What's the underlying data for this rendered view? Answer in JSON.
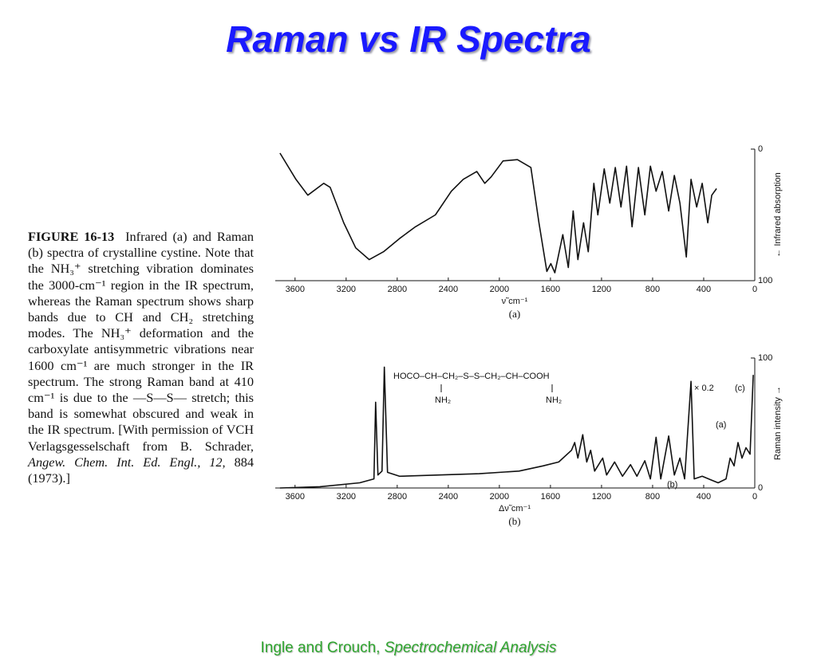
{
  "header": {
    "title": "Raman vs IR Spectra"
  },
  "caption": {
    "label": "FIGURE 16-13",
    "text": "Infrared (a) and Raman (b) spectra of crystalline cystine. Note that the NH₃⁺ stretching vibration dominates the 3000-cm⁻¹ region in the IR spectrum, whereas the Raman spectrum shows sharp bands due to CH and CH₂ stretching modes. The NH₃⁺ deformation and the carboxylate antisymmetric vibrations near 1600 cm⁻¹ are much stronger in the IR spectrum. The strong Raman band at 410 cm⁻¹ is due to the —S—S— stretch; this band is somewhat obscured and weak in the IR spectrum. [With permission of VCH Verlagsgesselschaft from B. Schrader, ",
    "journal": "Angew. Chem. Int. Ed. Engl., 12,",
    "rest": " 884 (1973).]"
  },
  "footer": {
    "authors": "Ingle and Crouch, ",
    "book": "Spectrochemical Analysis"
  },
  "chart_data": [
    {
      "type": "line",
      "xlabel": "ν̃ cm⁻¹",
      "panel": "(a)",
      "ylabel": "← Infrared absorption",
      "xlim": [
        3780,
        0
      ],
      "ylim": [
        100,
        0
      ],
      "xticks": [
        3600,
        3200,
        2800,
        2400,
        2000,
        1600,
        1200,
        800,
        400,
        0
      ],
      "yticks": [
        0,
        100
      ],
      "series": [
        {
          "color": "#111111",
          "x": [
            3718,
            3593,
            3500,
            3375,
            3325,
            3219,
            3125,
            3019,
            2907,
            2782,
            2657,
            2501,
            2376,
            2283,
            2177,
            2114,
            2064,
            1971,
            1859,
            1753,
            1690,
            1628,
            1597,
            1566,
            1503,
            1460,
            1422,
            1385,
            1341,
            1304,
            1260,
            1229,
            1179,
            1135,
            1092,
            1048,
            1004,
            961,
            911,
            861,
            817,
            773,
            724,
            674,
            630,
            586,
            536,
            499,
            455,
            412,
            368,
            337,
            299
          ],
          "values": [
            3,
            23,
            35,
            26,
            29,
            56,
            75,
            84,
            78,
            68,
            59,
            50,
            32,
            23,
            17,
            26,
            21,
            9,
            8,
            14,
            56,
            93,
            87,
            94,
            65,
            90,
            47,
            84,
            56,
            78,
            26,
            50,
            15,
            41,
            14,
            44,
            13,
            59,
            14,
            50,
            13,
            32,
            17,
            47,
            20,
            41,
            82,
            23,
            44,
            26,
            56,
            35,
            30
          ]
        }
      ]
    },
    {
      "type": "line",
      "xlabel": "Δν̃ cm⁻¹",
      "panel": "(b)",
      "ylabel": "Raman intensity →",
      "xlim": [
        3780,
        0
      ],
      "ylim": [
        0,
        100
      ],
      "xticks": [
        3600,
        3200,
        2800,
        2400,
        2000,
        1600,
        1200,
        800,
        400,
        0
      ],
      "yticks": [
        0,
        100
      ],
      "annotations": [
        "HOCO–CH–CH₂–S–S–CH₂–CH–COOH",
        "NH₂",
        "NH₂",
        "× 0.2",
        "(c)",
        "(a)",
        "(b)"
      ],
      "series": [
        {
          "color": "#111111",
          "x": [
            3718,
            3406,
            3094,
            2982,
            2969,
            2951,
            2919,
            2901,
            2876,
            2782,
            2470,
            2158,
            1846,
            1659,
            1535,
            1435,
            1410,
            1385,
            1347,
            1316,
            1285,
            1254,
            1191,
            1160,
            1098,
            1036,
            973,
            923,
            861,
            817,
            773,
            736,
            674,
            630,
            586,
            549,
            499,
            474,
            412,
            287,
            225,
            193,
            162,
            131,
            100,
            69,
            37,
            12
          ],
          "values": [
            0,
            1,
            4,
            7,
            66,
            10,
            13,
            93,
            12,
            9,
            10,
            11,
            13,
            17,
            20,
            29,
            35,
            23,
            41,
            20,
            29,
            13,
            23,
            10,
            20,
            9,
            18,
            9,
            21,
            7,
            39,
            7,
            40,
            10,
            23,
            7,
            82,
            7,
            9,
            4,
            7,
            23,
            17,
            35,
            23,
            31,
            26,
            87
          ]
        }
      ]
    }
  ]
}
